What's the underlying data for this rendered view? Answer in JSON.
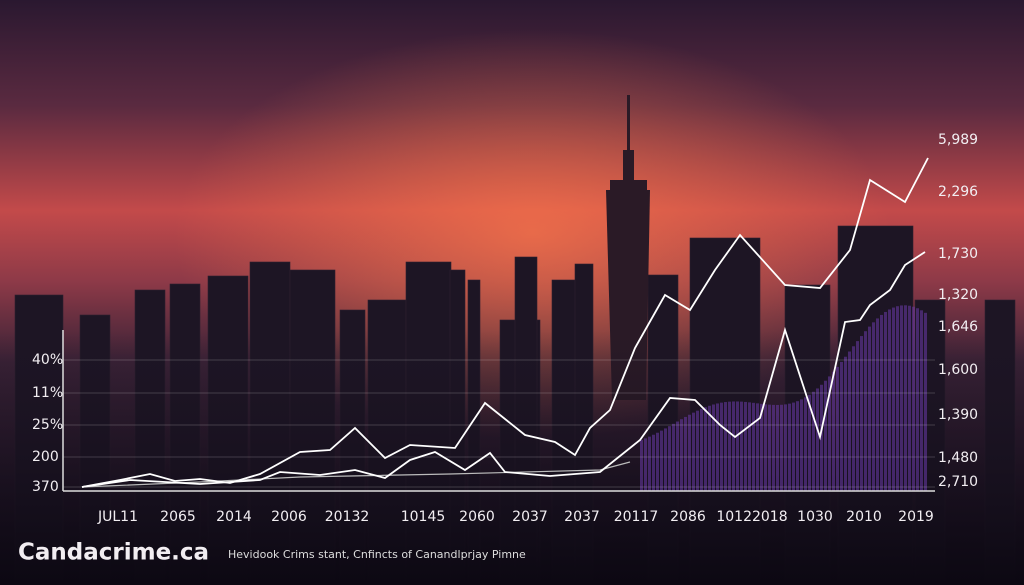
{
  "left_labels": [
    "40%",
    "11%",
    "25%",
    "200",
    "370"
  ],
  "right_labels": [
    "5,989",
    "2,296",
    "1,730",
    "1,320",
    "1,646",
    "1,600",
    "1,390",
    "1,480",
    "2,710"
  ],
  "x_labels": [
    "JUL11",
    "2065",
    "2014",
    "2006",
    "20132",
    "10145",
    "2060",
    "2037",
    "2037",
    "20117",
    "2086",
    "10122018",
    "1030",
    "2010",
    "2019"
  ],
  "brand": "Candacrime.ca",
  "caption": "Hevidook Crims stant, Cnfincts of Canandlprjay Pimne"
}
